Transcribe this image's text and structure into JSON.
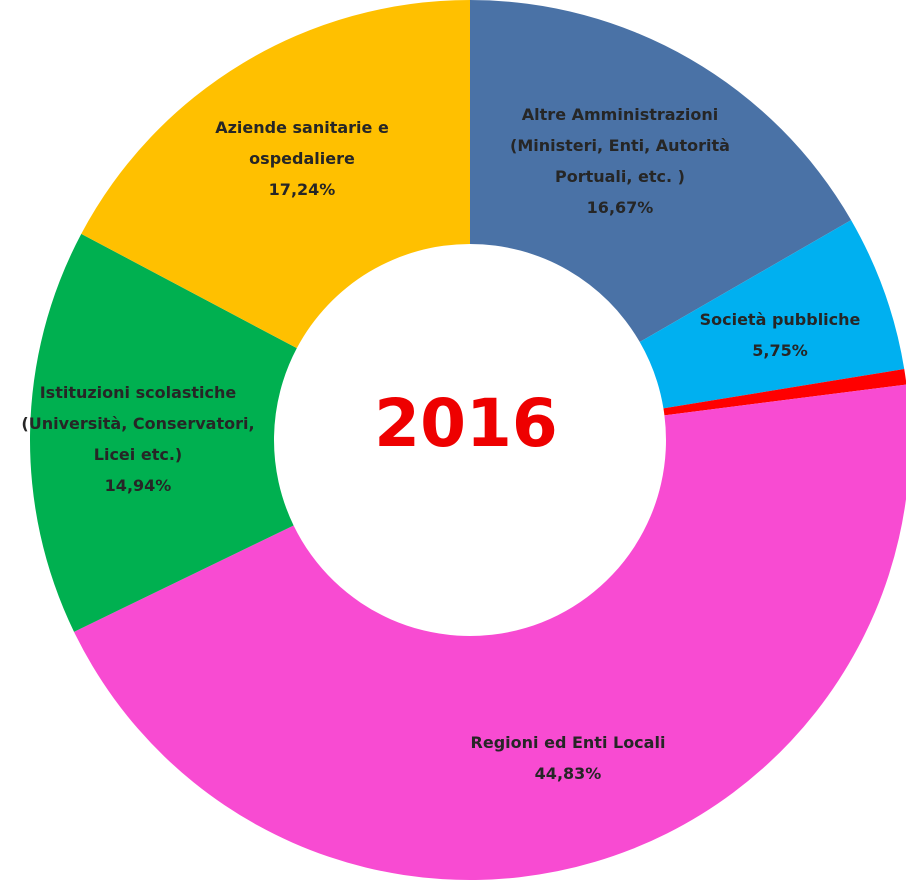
{
  "chart_data": {
    "type": "donut",
    "title": "2016",
    "categories": [
      "Altre Amministrazioni\n(Ministeri,  Enti, Autorità\nPortuali, etc. )",
      "Società pubbliche",
      null,
      "Regioni ed Enti Locali",
      "Istituzioni scolastiche\n(Università, Conservatori,\nLicei etc.)",
      "Aziende sanitarie e\nospedaliere"
    ],
    "values": [
      16.67,
      5.75,
      0.57,
      44.83,
      14.94,
      17.24
    ],
    "value_labels": [
      "16,67%",
      "5,75%",
      null,
      "44,83%",
      "14,94%",
      "17,24%"
    ],
    "colors": [
      "#4a72a6",
      "#00b0f0",
      "#ff0000",
      "#f84bd2",
      "#00b050",
      "#ffc000"
    ]
  }
}
